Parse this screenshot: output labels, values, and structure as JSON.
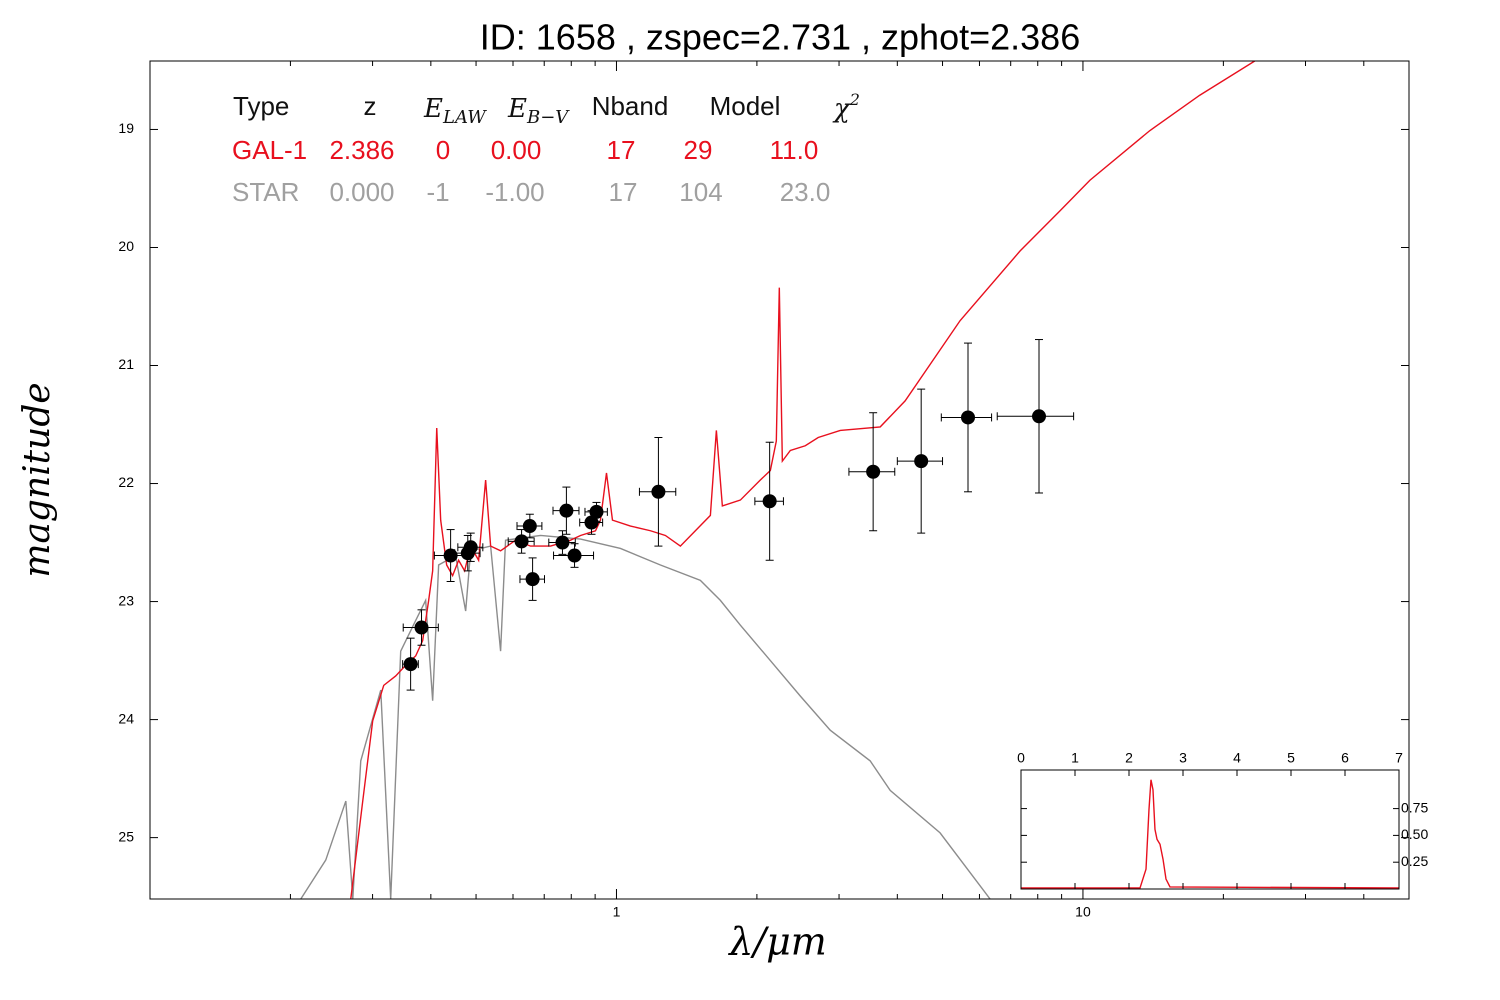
{
  "chart_data": {
    "type": "sed",
    "title": "ID:  1658  , zspec=2.731 , zphot=2.386",
    "xlabel": "λ/μm",
    "ylabel": "magnitude",
    "xscale": "log",
    "yinverted": true,
    "xlim": [
      0.1,
      50
    ],
    "ylim": [
      18.42,
      25.52
    ],
    "xticks": [
      1,
      10
    ],
    "xminorticks": [
      0.2,
      0.3,
      0.4,
      0.5,
      0.6,
      0.7,
      0.8,
      0.9,
      2,
      3,
      4,
      5,
      6,
      7,
      8,
      9,
      20,
      30,
      40
    ],
    "yticks": [
      19,
      20,
      21,
      22,
      23,
      24,
      25
    ],
    "series": [
      {
        "color": "#e8101e",
        "x": [
          0.2694,
          0.2858,
          0.3002,
          0.317,
          0.3363,
          0.3533,
          0.3712,
          0.3842,
          0.3957,
          0.4036,
          0.4118,
          0.4199,
          0.4325,
          0.4454,
          0.4588,
          0.4726,
          0.4868,
          0.5064,
          0.5242,
          0.5373,
          0.5644,
          0.6076,
          0.6543,
          0.7224,
          0.797,
          0.8374,
          0.9016,
          0.9241,
          0.9519,
          0.9804,
          1.0715,
          1.1826,
          1.2731,
          1.3709,
          1.4762,
          1.5897,
          1.6374,
          1.6865,
          1.8433,
          2.0343,
          2.1372,
          2.2012,
          2.234,
          2.2676,
          2.3587,
          2.5394,
          2.7068,
          3.0178,
          3.676,
          4.1571,
          5.4532,
          7.33,
          8.9269,
          10.35,
          13.91,
          17.8,
          23.35
        ],
        "values": [
          25.52,
          24.69,
          24.01,
          23.71,
          23.63,
          23.54,
          23.46,
          23.33,
          22.99,
          22.74,
          21.53,
          22.31,
          22.69,
          22.78,
          22.65,
          22.74,
          22.53,
          22.65,
          21.97,
          22.53,
          22.57,
          22.48,
          22.53,
          22.53,
          22.48,
          22.44,
          22.4,
          22.31,
          21.91,
          22.31,
          22.36,
          22.4,
          22.44,
          22.53,
          22.4,
          22.27,
          21.55,
          22.19,
          22.14,
          21.97,
          21.89,
          21.64,
          20.34,
          21.81,
          21.72,
          21.68,
          21.61,
          21.55,
          21.52,
          21.3,
          20.62,
          20.03,
          19.69,
          19.43,
          19.01,
          18.71,
          18.42
        ]
      },
      {
        "color": "#8c8c8c",
        "x": [
          0.2105,
          0.2381,
          0.2629,
          0.2721,
          0.283,
          0.3124,
          0.3281,
          0.3447,
          0.3712,
          0.3899,
          0.4036,
          0.4157,
          0.4519,
          0.475,
          0.4868,
          0.5373,
          0.5644,
          0.5784,
          0.6876,
          0.8374,
          1.02,
          1.2424,
          1.513,
          1.6701,
          1.8433,
          2.1372,
          2.4774,
          2.8724,
          3.499,
          3.8618,
          4.9403,
          6.3224
        ],
        "values": [
          25.52,
          25.19,
          24.69,
          25.52,
          24.35,
          23.75,
          25.52,
          23.42,
          23.16,
          22.99,
          23.84,
          22.69,
          22.61,
          23.08,
          22.57,
          22.53,
          23.42,
          22.48,
          22.44,
          22.47,
          22.55,
          22.69,
          22.82,
          22.99,
          23.2,
          23.5,
          23.8,
          24.09,
          24.35,
          24.6,
          24.96,
          25.52
        ]
      }
    ],
    "points": {
      "color": "#000000",
      "x": [
        0.362,
        0.382,
        0.441,
        0.48,
        0.487,
        0.626,
        0.652,
        0.661,
        0.766,
        0.781,
        0.813,
        0.884,
        0.906,
        1.23,
        2.13,
        3.55,
        4.5,
        5.67,
        8.05
      ],
      "values": [
        23.53,
        23.22,
        22.61,
        22.59,
        22.54,
        22.49,
        22.36,
        22.81,
        22.5,
        22.23,
        22.61,
        22.33,
        22.24,
        22.07,
        22.15,
        21.9,
        21.81,
        21.44,
        21.43
      ],
      "xerr": [
        0.014,
        0.033,
        0.034,
        0.03,
        0.03,
        0.04,
        0.04,
        0.04,
        0.05,
        0.05,
        0.08,
        0.05,
        0.05,
        0.11,
        0.15,
        0.4,
        0.5,
        0.7,
        1.5
      ],
      "yerr": [
        0.22,
        0.15,
        0.22,
        0.15,
        0.12,
        0.1,
        0.1,
        0.18,
        0.1,
        0.2,
        0.1,
        0.1,
        0.08,
        0.46,
        0.5,
        0.5,
        0.61,
        0.63,
        0.65
      ]
    },
    "table": {
      "header": [
        {
          "text": "Type"
        },
        {
          "text": "z"
        },
        {
          "base": "E",
          "sub": "LAW"
        },
        {
          "base": "E",
          "sub": "B−V"
        },
        {
          "text": "Nband"
        },
        {
          "text": "Model"
        },
        {
          "base": "χ",
          "sup": "2"
        }
      ],
      "rows": [
        {
          "color": "#e8101e",
          "cells": [
            "GAL-1",
            "2.386",
            "0",
            "0.00",
            "17",
            "29",
            "11.0"
          ]
        },
        {
          "color": "#a0a0a0",
          "cells": [
            "STAR",
            "0.000",
            "-1",
            "-1.00",
            "17",
            "104",
            "23.0"
          ]
        }
      ]
    },
    "inset": {
      "type": "line",
      "xlim": [
        0,
        7
      ],
      "ylim": [
        0,
        1.11
      ],
      "xticks": [
        0,
        1,
        2,
        3,
        4,
        5,
        6,
        7
      ],
      "yticks": [
        0.25,
        {
          "value": 0.5,
          "label": "0.50"
        },
        0.75
      ],
      "series": [
        {
          "color": "#e8101e",
          "x": [
            0,
            2.204,
            2.315,
            2.37,
            2.407,
            2.444,
            2.481,
            2.519,
            2.574,
            2.63,
            2.685,
            2.759,
            7
          ],
          "values": [
            0.01,
            0.01,
            0.185,
            0.741,
            1.019,
            0.926,
            0.556,
            0.463,
            0.417,
            0.278,
            0.093,
            0.019,
            0.01
          ]
        }
      ]
    }
  }
}
